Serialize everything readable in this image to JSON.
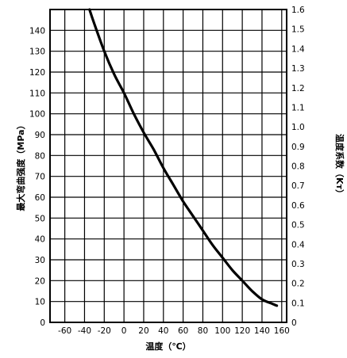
{
  "chart_data": {
    "type": "line",
    "title": "",
    "xlabel": "温度（℃）",
    "ylabel": "最大弯曲强度（MPa）",
    "y2label": "温度系数（Kт）",
    "xlim": [
      -75,
      165
    ],
    "ylim": [
      0,
      150
    ],
    "y2lim": [
      0,
      1.6
    ],
    "xticks": [
      -60,
      -40,
      -20,
      0,
      20,
      40,
      60,
      80,
      100,
      120,
      140,
      160
    ],
    "yticks": [
      0,
      10,
      20,
      30,
      40,
      50,
      60,
      70,
      80,
      90,
      100,
      110,
      120,
      130,
      140
    ],
    "y2ticks": [
      0,
      0.1,
      0.2,
      0.3,
      0.4,
      0.5,
      0.6,
      0.7,
      0.8,
      0.9,
      1.0,
      1.1,
      1.2,
      1.3,
      1.4,
      1.5,
      1.6
    ],
    "grid": true,
    "series": [
      {
        "x": [
          -35,
          -30,
          -20,
          -10,
          0,
          10,
          20,
          30,
          40,
          50,
          60,
          70,
          80,
          90,
          100,
          110,
          120,
          130,
          140,
          150,
          155
        ],
        "y": [
          150,
          143,
          130,
          119,
          110,
          100,
          91,
          83,
          74,
          66,
          58,
          51,
          44,
          37,
          31,
          25,
          20,
          15,
          11,
          9,
          8
        ]
      }
    ]
  }
}
